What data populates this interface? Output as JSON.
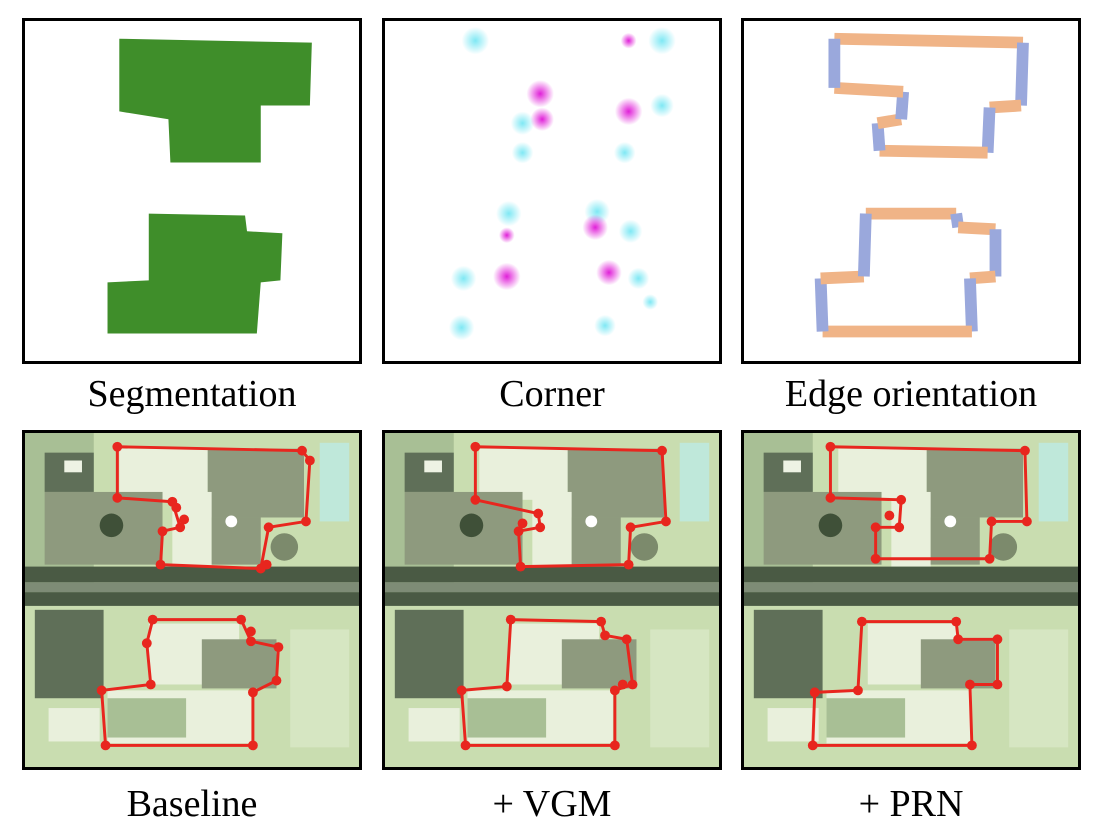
{
  "figure": {
    "captions": {
      "segmentation": "Segmentation",
      "corner": "Corner",
      "edge_orientation": "Edge orientation",
      "baseline": "Baseline",
      "vgm": "+ VGM",
      "prn": "+ PRN"
    }
  },
  "colors": {
    "segmentation_fill": "#3f8e2a",
    "corner_cyan": "#7fe8f4",
    "corner_magenta": "#e020d8",
    "edge_horizontal": "#f0b487",
    "edge_vertical": "#9aa8dc",
    "polygon_red": "#e8261e",
    "aerial_background": "#c9ddb0",
    "road": "#4a5a44"
  }
}
